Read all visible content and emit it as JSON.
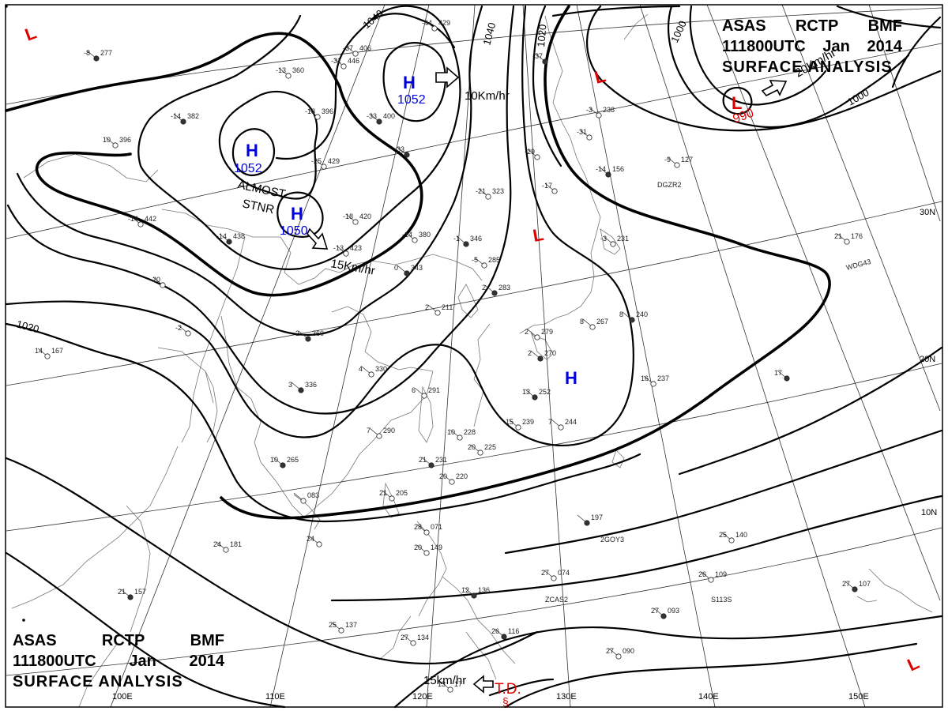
{
  "chart": {
    "header_top_right": {
      "line1": [
        "ASAS",
        "RCTP",
        "BMF"
      ],
      "line2": [
        "111800UTC",
        "Jan",
        "2014"
      ],
      "line3": "SURFACE ANALYSIS"
    },
    "header_bottom_left": {
      "line1": [
        "ASAS",
        "RCTP",
        "BMF"
      ],
      "line2": [
        "111800UTC",
        "Jan",
        "2014"
      ],
      "line3": "SURFACE ANALYSIS"
    }
  },
  "colors": {
    "high": "#0000dd",
    "low": "#dd0000",
    "isobar": "#000000",
    "coast": "#777777",
    "grid": "#333333"
  },
  "isobar_labels": [
    "1040",
    "1040",
    "1020",
    "1020",
    "1000",
    "1000",
    "1020"
  ],
  "longitude_labels": [
    "110E",
    "120E",
    "130E",
    "140E",
    "150E",
    "100E"
  ],
  "latitude_labels": [
    "30N",
    "20N",
    "10N"
  ],
  "pressure_systems": [
    {
      "type": "H",
      "value": "1052"
    },
    {
      "type": "H",
      "value": "1052"
    },
    {
      "type": "H",
      "value": "1050"
    },
    {
      "type": "H",
      "value": ""
    },
    {
      "type": "L",
      "value": "990"
    },
    {
      "type": "L",
      "value": ""
    },
    {
      "type": "L",
      "value": ""
    },
    {
      "type": "L",
      "value": ""
    },
    {
      "type": "L",
      "value": ""
    }
  ],
  "annotations": {
    "almost": "ALMOST",
    "stnr": "STNR",
    "motions": [
      "10Km/hr",
      "15Km/hr",
      "20Km/hr",
      "15km/hr"
    ],
    "td": "T.D.",
    "td_symbol": "§"
  },
  "stations": [
    {
      "t": "-8",
      "p": "277"
    },
    {
      "t": "-13",
      "p": "360"
    },
    {
      "t": "-37",
      "p": "406"
    },
    {
      "t": "-33",
      "p": "400"
    },
    {
      "t": "-44",
      "p": "429"
    },
    {
      "t": "-18",
      "p": "396"
    },
    {
      "t": "-14",
      "p": "382"
    },
    {
      "t": "10",
      "p": "396"
    },
    {
      "t": "-25",
      "p": "429"
    },
    {
      "t": "-33",
      "p": ""
    },
    {
      "t": "-31",
      "p": "446"
    },
    {
      "t": "-14",
      "p": "442"
    },
    {
      "t": "-14",
      "p": "438"
    },
    {
      "t": "-18",
      "p": "420"
    },
    {
      "t": "-14",
      "p": "380"
    },
    {
      "t": "-1",
      "p": "346"
    },
    {
      "t": "-21",
      "p": "323"
    },
    {
      "t": "-13",
      "p": "423"
    },
    {
      "t": "0",
      "p": "343"
    },
    {
      "t": "-5",
      "p": "285"
    },
    {
      "t": "2",
      "p": "211"
    },
    {
      "t": "2",
      "p": "283"
    },
    {
      "t": "-20",
      "p": ""
    },
    {
      "t": "-2",
      "p": ""
    },
    {
      "t": "2",
      "p": "360"
    },
    {
      "t": "14",
      "p": "167"
    },
    {
      "t": "4",
      "p": "330"
    },
    {
      "t": "3",
      "p": "336"
    },
    {
      "t": "6",
      "p": "291"
    },
    {
      "t": "7",
      "p": "290"
    },
    {
      "t": "10",
      "p": "265"
    },
    {
      "t": "10",
      "p": "228"
    },
    {
      "t": "20",
      "p": "225"
    },
    {
      "t": "21",
      "p": "231"
    },
    {
      "t": "20",
      "p": "220"
    },
    {
      "t": "21",
      "p": "205"
    },
    {
      "t": "13",
      "p": "252"
    },
    {
      "t": "15",
      "p": "239"
    },
    {
      "t": "7",
      "p": "244"
    },
    {
      "t": "2",
      "p": "270"
    },
    {
      "t": "2",
      "p": "279"
    },
    {
      "t": "8",
      "p": "267"
    },
    {
      "t": "8",
      "p": "240"
    },
    {
      "t": "-17",
      "p": ""
    },
    {
      "t": "-29",
      "p": ""
    },
    {
      "t": "-37",
      "p": ""
    },
    {
      "t": "-3",
      "p": "238"
    },
    {
      "t": "-31",
      "p": ""
    },
    {
      "t": "-14",
      "p": "156"
    },
    {
      "t": "-9",
      "p": "127"
    },
    {
      "t": "-3",
      "p": "231"
    },
    {
      "t": "17",
      "p": ""
    },
    {
      "t": "16",
      "p": "237"
    },
    {
      "t": "21",
      "p": "176"
    },
    {
      "t": "",
      "p": "197"
    },
    {
      "t": "25",
      "p": "140"
    },
    {
      "t": "26",
      "p": "109"
    },
    {
      "t": "27",
      "p": "093"
    },
    {
      "t": "27",
      "p": "090"
    },
    {
      "t": "27",
      "p": "074"
    },
    {
      "t": "27",
      "p": "107"
    },
    {
      "t": "28",
      "p": "071"
    },
    {
      "t": "20",
      "p": "149"
    },
    {
      "t": "12",
      "p": "136"
    },
    {
      "t": "24",
      "p": ""
    },
    {
      "t": "24",
      "p": "181"
    },
    {
      "t": "21",
      "p": "157"
    },
    {
      "t": "25",
      "p": "137"
    },
    {
      "t": "27",
      "p": "134"
    },
    {
      "t": "26",
      "p": "116"
    },
    {
      "t": "",
      "p": "083"
    },
    {
      "t": "13",
      "p": "17"
    },
    {
      "t": "",
      "p": "18"
    }
  ],
  "ship_ids": [
    "DGZR2",
    "WDG43",
    "2GOY3",
    "ZCAS2",
    "S113S"
  ]
}
